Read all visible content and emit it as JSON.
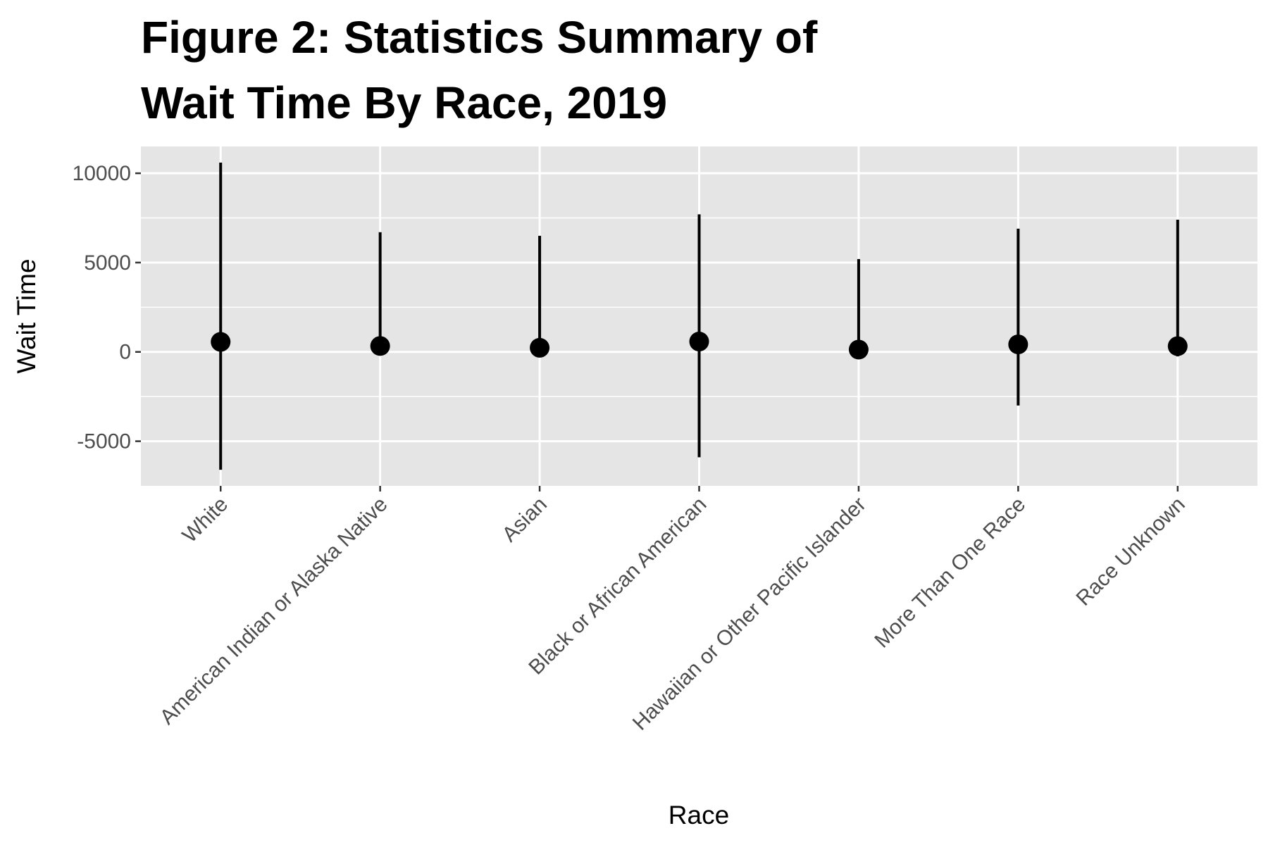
{
  "chart_data": {
    "type": "scatter",
    "title_lines": [
      "Figure 2: Statistics Summary of",
      "Wait Time By Race, 2019"
    ],
    "xlabel": "Race",
    "ylabel": "Wait Time",
    "categories": [
      "White",
      "American Indian or Alaska Native",
      "Asian",
      "Black or African American",
      "Hawaiian or Other Pacific Islander",
      "More Than One Race",
      "Race Unknown"
    ],
    "y_ticks": [
      -5000,
      0,
      5000,
      10000
    ],
    "y_tick_labels": [
      "-5000",
      "0",
      "5000",
      "10000"
    ],
    "ylim": [
      -7500,
      11500
    ],
    "grid": true,
    "series": [
      {
        "values": [
          560,
          330,
          230,
          580,
          130,
          420,
          320
        ],
        "lower": [
          -6600,
          -200,
          0,
          -5900,
          -150,
          -3000,
          -250
        ],
        "upper": [
          10600,
          6700,
          6500,
          7700,
          5200,
          6900,
          7400
        ]
      }
    ],
    "colors": {
      "panel": "#e5e5e5",
      "grid": "#ffffff",
      "mark": "#000000",
      "tick_text": "#4d4d4d"
    }
  }
}
